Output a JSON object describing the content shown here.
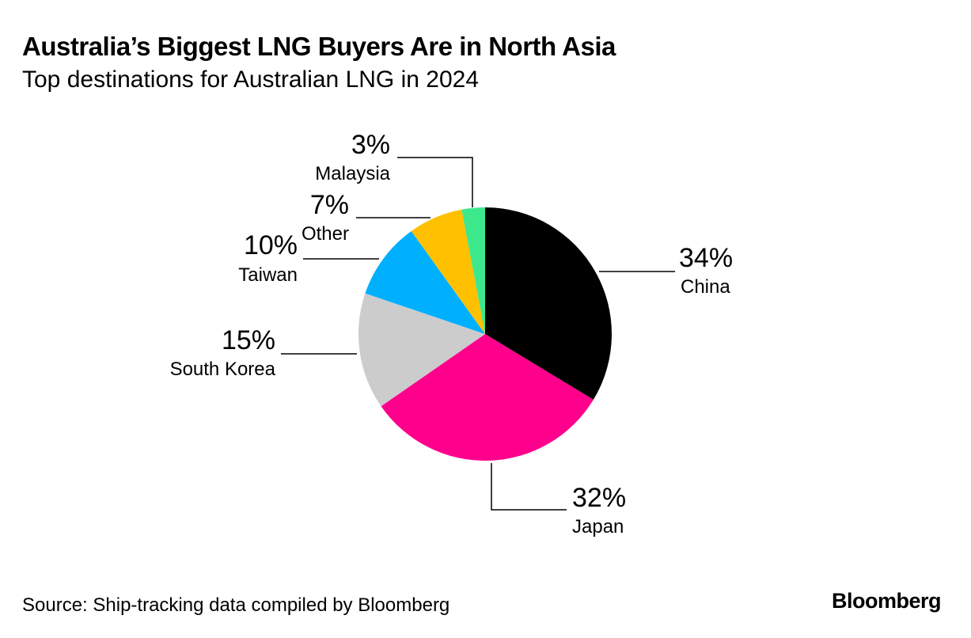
{
  "header": {
    "title": "Australia’s Biggest LNG Buyers Are in North Asia",
    "subtitle": "Top destinations for Australian LNG in 2024"
  },
  "footer": {
    "source": "Source: Ship-tracking data compiled by Bloomberg",
    "brand": "Bloomberg"
  },
  "chart_data": {
    "type": "pie",
    "title": "Australia’s Biggest LNG Buyers Are in North Asia",
    "subtitle": "Top destinations for Australian LNG in 2024",
    "unit": "%",
    "slices": [
      {
        "name": "China",
        "value": 34,
        "label": "34%",
        "color": "#000000"
      },
      {
        "name": "Japan",
        "value": 32,
        "label": "32%",
        "color": "#ff008c"
      },
      {
        "name": "South Korea",
        "value": 15,
        "label": "15%",
        "color": "#cccccc"
      },
      {
        "name": "Taiwan",
        "value": 10,
        "label": "10%",
        "color": "#00b0ff"
      },
      {
        "name": "Other",
        "value": 7,
        "label": "7%",
        "color": "#ffc000"
      },
      {
        "name": "Malaysia",
        "value": 3,
        "label": "3%",
        "color": "#3de88d"
      }
    ]
  }
}
